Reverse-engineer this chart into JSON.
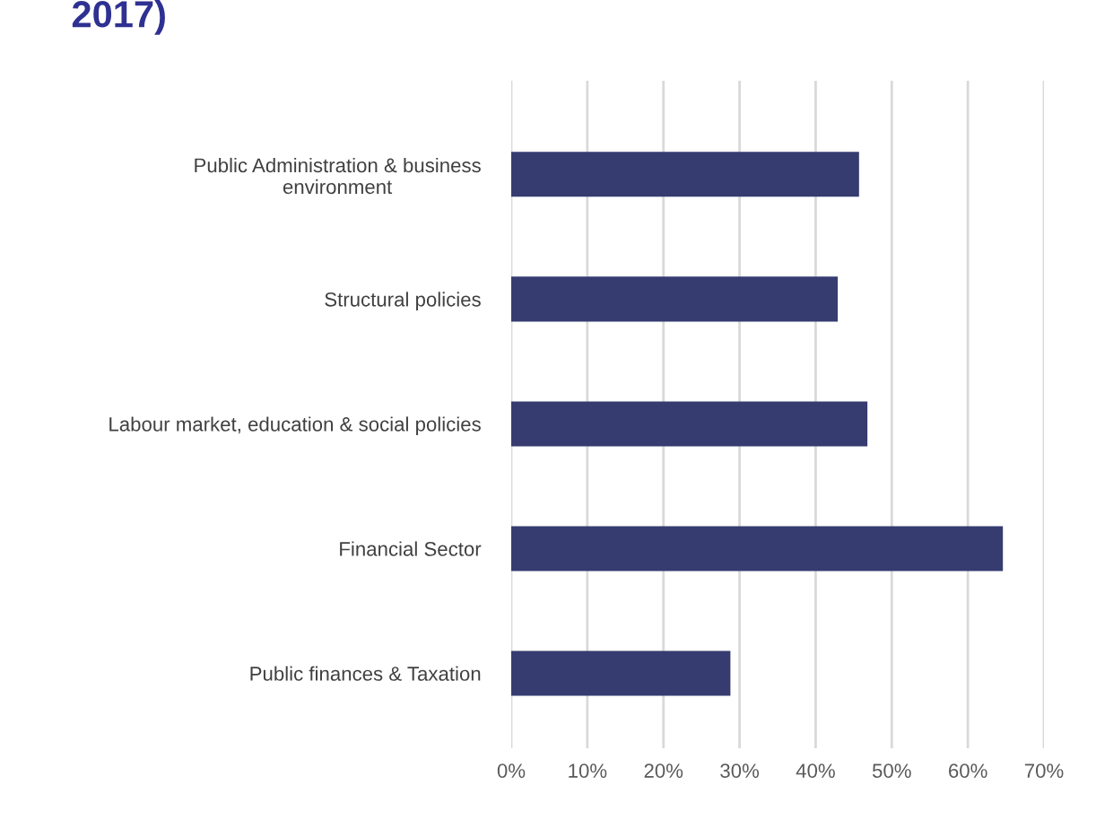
{
  "chart_data": {
    "type": "bar",
    "orientation": "horizontal",
    "title": "2017)",
    "categories": [
      "Public Administration & business\nenvironment",
      "Structural policies",
      "Labour market, education & social policies",
      "Financial Sector",
      "Public finances & Taxation"
    ],
    "values": [
      45.7,
      42.9,
      46.8,
      64.6,
      28.8
    ],
    "color": "#363c70",
    "xlim": [
      0,
      70
    ],
    "xticks": [
      {
        "value": 0,
        "label": "0%"
      },
      {
        "value": 10,
        "label": "10%"
      },
      {
        "value": 20,
        "label": "20%"
      },
      {
        "value": 30,
        "label": "30%"
      },
      {
        "value": 40,
        "label": "40%"
      },
      {
        "value": 50,
        "label": "50%"
      },
      {
        "value": 60,
        "label": "60%"
      },
      {
        "value": 70,
        "label": "70%"
      }
    ],
    "grid": "x"
  }
}
